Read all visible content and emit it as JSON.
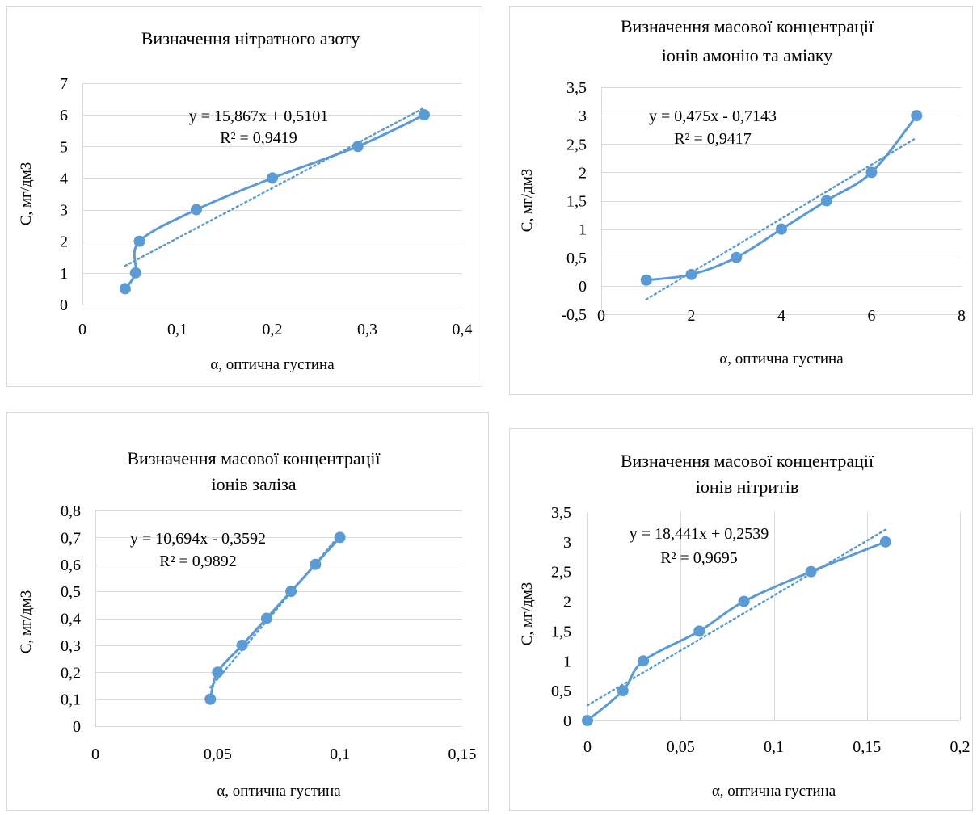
{
  "colors": {
    "series": "#5b9bd5",
    "grid": "#d9d9d9",
    "frame": "#d9d9d9",
    "text": "#000000"
  },
  "chart_data": [
    {
      "type": "scatter",
      "title": [
        "Визначення нітратного азоту"
      ],
      "xlabel": "α, оптична густина",
      "ylabel": "С, мг/дм3",
      "xlim": [
        0,
        0.4
      ],
      "ylim": [
        0,
        7
      ],
      "xticks": [
        0,
        0.1,
        0.2,
        0.3,
        0.4
      ],
      "xtick_labels": [
        "0",
        "0,1",
        "0,2",
        "0,3",
        "0,4"
      ],
      "yticks": [
        0,
        1,
        2,
        3,
        4,
        5,
        6,
        7
      ],
      "ytick_labels": [
        "0",
        "1",
        "2",
        "3",
        "4",
        "5",
        "6",
        "7"
      ],
      "points": [
        {
          "x": 0.045,
          "y": 0.5
        },
        {
          "x": 0.056,
          "y": 1
        },
        {
          "x": 0.06,
          "y": 2
        },
        {
          "x": 0.12,
          "y": 3
        },
        {
          "x": 0.2,
          "y": 4
        },
        {
          "x": 0.29,
          "y": 5
        },
        {
          "x": 0.36,
          "y": 6
        }
      ],
      "smooth_line": true,
      "trendline": {
        "type": "linear",
        "slope": 15.867,
        "intercept": 0.5101,
        "from": 0.045,
        "to": 0.36
      },
      "equation": "y = 15,867x + 0,5101",
      "r2": "R² = 0,9419",
      "grid": "horizontal"
    },
    {
      "type": "scatter",
      "title": [
        "Визначення масової концентрації",
        "іонів амонію та аміаку"
      ],
      "xlabel": "α, оптична густина",
      "ylabel": "С, мг/дм3",
      "xlim": [
        0,
        8
      ],
      "ylim": [
        -0.5,
        3.5
      ],
      "xticks": [
        0,
        2,
        4,
        6,
        8
      ],
      "xtick_labels": [
        "0",
        "2",
        "4",
        "6",
        "8"
      ],
      "yticks": [
        -0.5,
        0,
        0.5,
        1,
        1.5,
        2,
        2.5,
        3,
        3.5
      ],
      "ytick_labels": [
        "-0,5",
        "0",
        "0,5",
        "1",
        "1,5",
        "2",
        "2,5",
        "3",
        "3,5"
      ],
      "points": [
        {
          "x": 1,
          "y": 0.1
        },
        {
          "x": 2,
          "y": 0.2
        },
        {
          "x": 3,
          "y": 0.5
        },
        {
          "x": 4,
          "y": 1
        },
        {
          "x": 5,
          "y": 1.5
        },
        {
          "x": 6,
          "y": 2
        },
        {
          "x": 7,
          "y": 3
        }
      ],
      "smooth_line": true,
      "trendline": {
        "type": "linear",
        "slope": 0.475,
        "intercept": -0.7143,
        "from": 1,
        "to": 7
      },
      "equation": "y = 0,475x - 0,7143",
      "r2": "R² = 0,9417",
      "grid": "horizontal"
    },
    {
      "type": "scatter",
      "title": [
        "Визначення масової концентрації",
        "іонів заліза"
      ],
      "xlabel": "α, оптична густина",
      "ylabel": "С, мг/дм3",
      "xlim": [
        0,
        0.15
      ],
      "ylim": [
        0,
        0.8
      ],
      "xticks": [
        0,
        0.05,
        0.1,
        0.15
      ],
      "xtick_labels": [
        "0",
        "0,05",
        "0,1",
        "0,15"
      ],
      "yticks": [
        0,
        0.1,
        0.2,
        0.3,
        0.4,
        0.5,
        0.6,
        0.7,
        0.8
      ],
      "ytick_labels": [
        "0",
        "0,1",
        "0,2",
        "0,3",
        "0,4",
        "0,5",
        "0,6",
        "0,7",
        "0,8"
      ],
      "points": [
        {
          "x": 0.047,
          "y": 0.1
        },
        {
          "x": 0.05,
          "y": 0.2
        },
        {
          "x": 0.06,
          "y": 0.3
        },
        {
          "x": 0.07,
          "y": 0.4
        },
        {
          "x": 0.08,
          "y": 0.5
        },
        {
          "x": 0.09,
          "y": 0.6
        },
        {
          "x": 0.1,
          "y": 0.7
        }
      ],
      "smooth_line": true,
      "trendline": {
        "type": "linear",
        "slope": 10.694,
        "intercept": -0.3592,
        "from": 0.047,
        "to": 0.1
      },
      "equation": "y = 10,694x - 0,3592",
      "r2": "R² = 0,9892",
      "grid": "horizontal"
    },
    {
      "type": "scatter",
      "title": [
        "Визначення масової концентрації",
        "іонів нітритів"
      ],
      "xlabel": "α, оптична густина",
      "ylabel": "С, мг/дм3",
      "xlim": [
        0,
        0.2
      ],
      "ylim": [
        0,
        3.5
      ],
      "xticks": [
        0,
        0.05,
        0.1,
        0.15,
        0.2
      ],
      "xtick_labels": [
        "0",
        "0,05",
        "0,1",
        "0,15",
        "0,2"
      ],
      "yticks": [
        0,
        0.5,
        1,
        1.5,
        2,
        2.5,
        3,
        3.5
      ],
      "ytick_labels": [
        "0",
        "0,5",
        "1",
        "1,5",
        "2",
        "2,5",
        "3",
        "3,5"
      ],
      "points": [
        {
          "x": 0,
          "y": 0
        },
        {
          "x": 0.019,
          "y": 0.5
        },
        {
          "x": 0.03,
          "y": 1
        },
        {
          "x": 0.06,
          "y": 1.5
        },
        {
          "x": 0.084,
          "y": 2
        },
        {
          "x": 0.12,
          "y": 2.5
        },
        {
          "x": 0.16,
          "y": 3
        }
      ],
      "smooth_line": true,
      "trendline": {
        "type": "linear",
        "slope": 18.441,
        "intercept": 0.2539,
        "from": 0,
        "to": 0.16
      },
      "equation": "y = 18,441x + 0,2539",
      "r2": "R² = 0,9695",
      "grid": "vertical"
    }
  ]
}
